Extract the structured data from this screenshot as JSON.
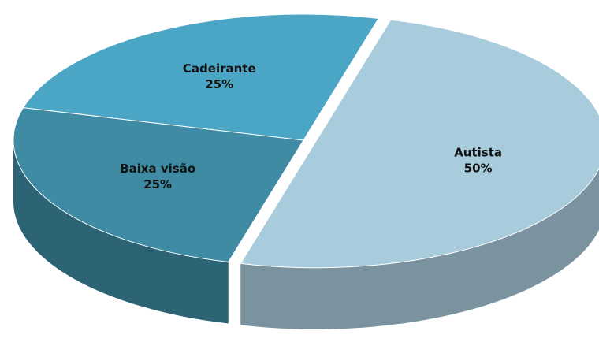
{
  "chart_data": {
    "type": "pie",
    "categories": [
      "Autista",
      "Baixa visão",
      "Cadeirante"
    ],
    "values": [
      50,
      25,
      25
    ],
    "value_labels": [
      "50%",
      "25%",
      "25%"
    ],
    "colors": [
      "#a9ccdc",
      "#3e8ba3",
      "#4ba6c5"
    ]
  }
}
